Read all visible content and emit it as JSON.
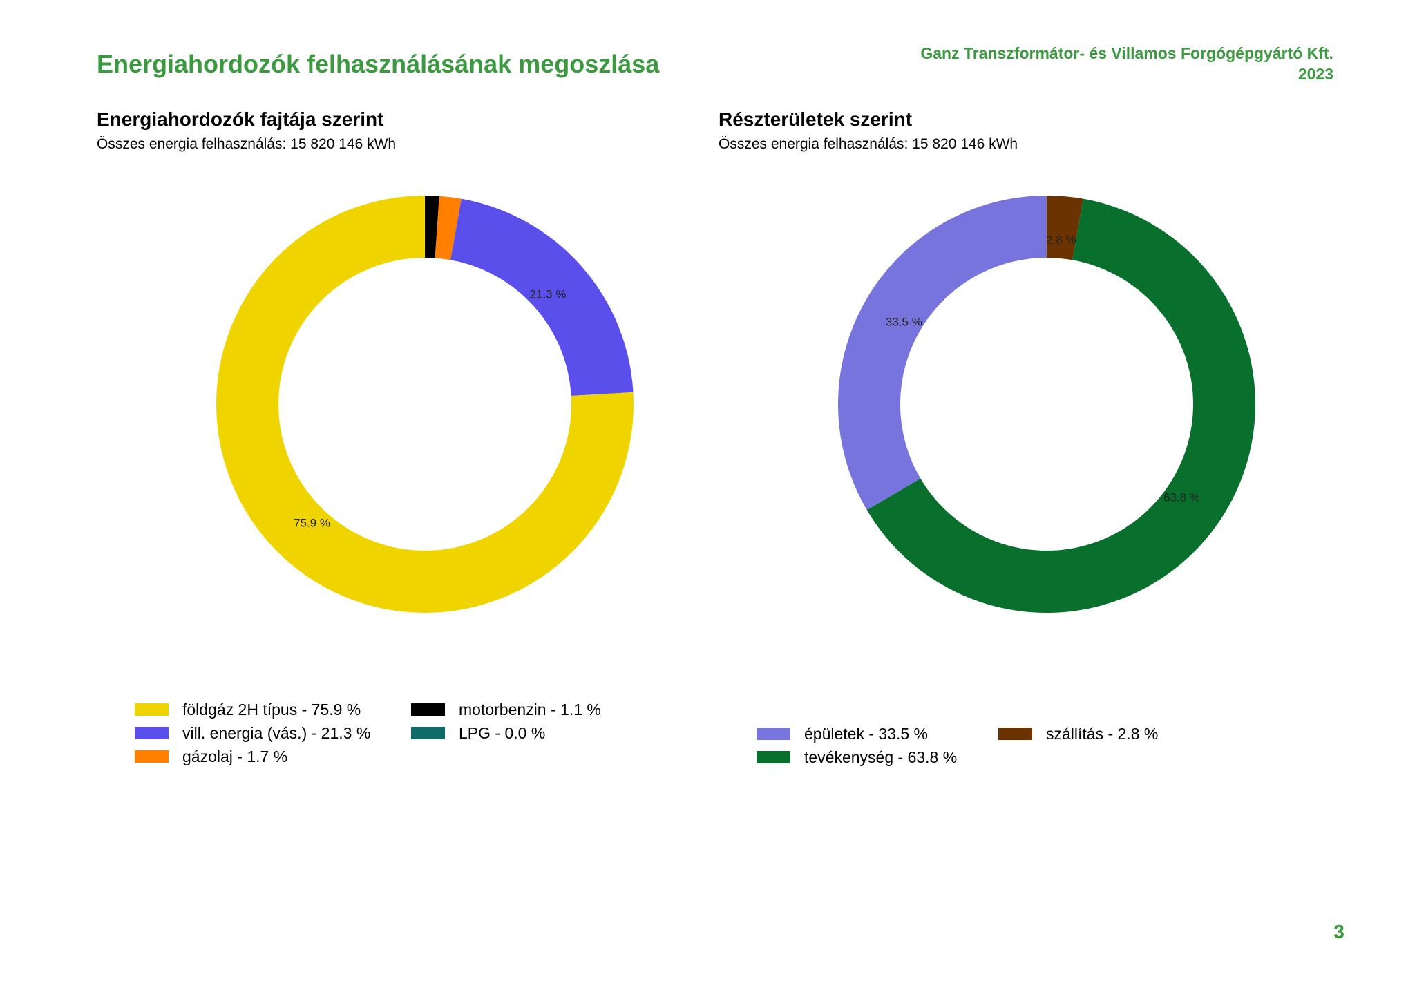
{
  "header": {
    "title": "Energiahordozók felhasználásának megoszlása",
    "company": "Ganz Transzformátor- és Villamos Forgógépgyártó Kft.",
    "year": "2023"
  },
  "page_number": "3",
  "chart_data": [
    {
      "type": "pie",
      "donut": true,
      "title": "Energiahordozók fajtája szerint",
      "subtitle": "Összes energia felhasználás: 15 820 146 kWh",
      "slices": [
        {
          "label": "motorbenzin",
          "value": 1.1,
          "color": "#000000",
          "data_label": ""
        },
        {
          "label": "gázolaj",
          "value": 1.7,
          "color": "#ff8000",
          "data_label": ""
        },
        {
          "label": "vill. energia (vás.)",
          "value": 21.3,
          "color": "#5b4fec",
          "data_label": "21.3 %"
        },
        {
          "label": "földgáz 2H típus",
          "value": 75.9,
          "color": "#f0d400",
          "data_label": "75.9 %"
        },
        {
          "label": "LPG",
          "value": 0.0,
          "color": "#0e6b67",
          "data_label": ""
        }
      ],
      "legend": [
        {
          "text": "földgáz 2H típus - 75.9 %",
          "color": "#f0d400"
        },
        {
          "text": "motorbenzin - 1.1 %",
          "color": "#000000"
        },
        {
          "text": "vill. energia (vás.) - 21.3 %",
          "color": "#5b4fec"
        },
        {
          "text": "LPG - 0.0 %",
          "color": "#0e6b67"
        },
        {
          "text": "gázolaj - 1.7 %",
          "color": "#ff8000"
        }
      ]
    },
    {
      "type": "pie",
      "donut": true,
      "title": "Részterületek szerint",
      "subtitle": "Összes energia felhasználás: 15 820 146 kWh",
      "slices": [
        {
          "label": "szállítás",
          "value": 2.8,
          "color": "#6b3300",
          "data_label": "2.8 %"
        },
        {
          "label": "tevékenység",
          "value": 63.8,
          "color": "#08702c",
          "data_label": "63.8 %"
        },
        {
          "label": "épületek",
          "value": 33.5,
          "color": "#7774dd",
          "data_label": "33.5 %"
        }
      ],
      "legend": [
        {
          "text": "épületek - 33.5 %",
          "color": "#7774dd"
        },
        {
          "text": "szállítás - 2.8 %",
          "color": "#6b3300"
        },
        {
          "text": "tevékenység - 63.8 %",
          "color": "#08702c"
        }
      ]
    }
  ]
}
